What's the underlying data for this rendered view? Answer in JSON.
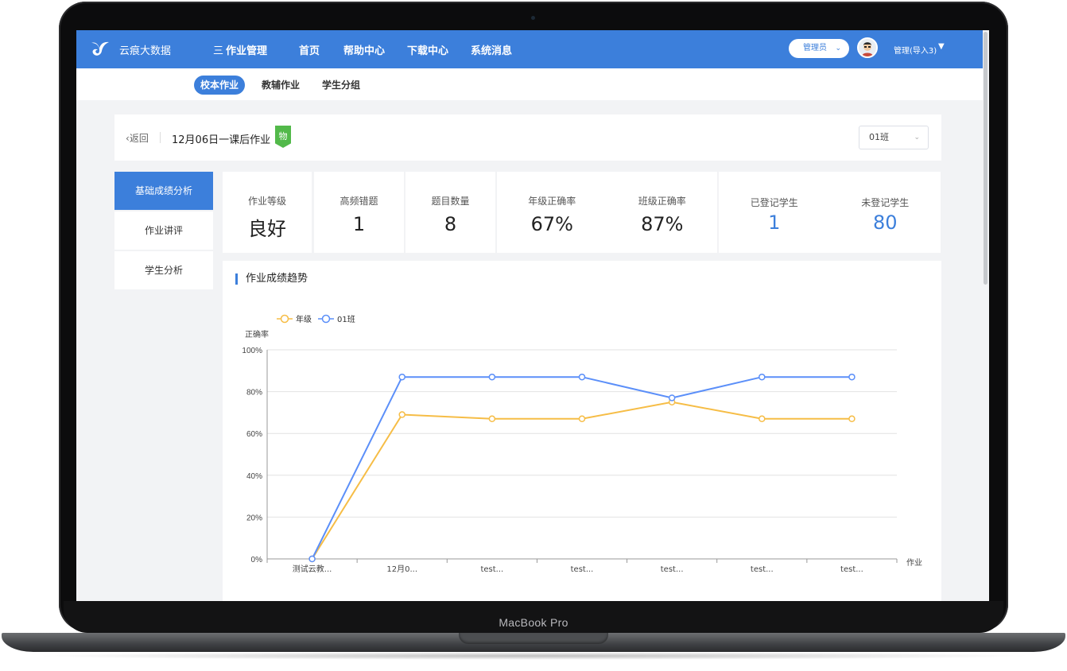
{
  "device": {
    "brand": "MacBook Pro"
  },
  "header": {
    "logo_text": "云痕大数据",
    "nav": [
      {
        "label": "作业管理",
        "icon": "三"
      },
      {
        "label": "首页"
      },
      {
        "label": "帮助中心"
      },
      {
        "label": "下载中心"
      },
      {
        "label": "系统消息"
      }
    ],
    "role": "管理员",
    "user": "管理(导入3)"
  },
  "subnav": {
    "tabs": [
      {
        "label": "校本作业"
      },
      {
        "label": "教辅作业"
      },
      {
        "label": "学生分组"
      }
    ],
    "active": 0
  },
  "title_bar": {
    "back": "返回",
    "homework_title": "12月06日一课后作业",
    "subject": "物",
    "class_select": "01班"
  },
  "side_menu": {
    "items": [
      {
        "label": "基础成绩分析"
      },
      {
        "label": "作业讲评"
      },
      {
        "label": "学生分析"
      }
    ],
    "active": 0
  },
  "stats": {
    "grade_level": {
      "label": "作业等级",
      "value": "良好"
    },
    "frequent_errors": {
      "label": "高频错题",
      "value": "1"
    },
    "question_count": {
      "label": "题目数量",
      "value": "8"
    },
    "grade_accuracy": {
      "label": "年级正确率",
      "value": "67%"
    },
    "class_accuracy": {
      "label": "班级正确率",
      "value": "87%"
    },
    "registered": {
      "label": "已登记学生",
      "value": "1"
    },
    "unregistered": {
      "label": "未登记学生",
      "value": "80"
    }
  },
  "colors": {
    "primary": "#3c7fdb",
    "grade_line": "#f6bd46",
    "class_line": "#5b8ff9",
    "subject_tag": "#52b94a"
  },
  "chart_title": "作业成绩趋势",
  "chart_data": {
    "type": "line",
    "ylabel": "正确率",
    "xlabel": "作业",
    "ylim": [
      0,
      100
    ],
    "yticks": [
      "0%",
      "20%",
      "40%",
      "60%",
      "80%",
      "100%"
    ],
    "categories": [
      "测试云教...",
      "12月0...",
      "test...",
      "test...",
      "test...",
      "test...",
      "test..."
    ],
    "series": [
      {
        "name": "年级",
        "color": "#f6bd46",
        "values": [
          0,
          69,
          67,
          67,
          75,
          67,
          67
        ]
      },
      {
        "name": "01班",
        "color": "#5b8ff9",
        "values": [
          0,
          87,
          87,
          87,
          77,
          87,
          87
        ]
      }
    ],
    "grid": true,
    "legend": "top-left"
  }
}
